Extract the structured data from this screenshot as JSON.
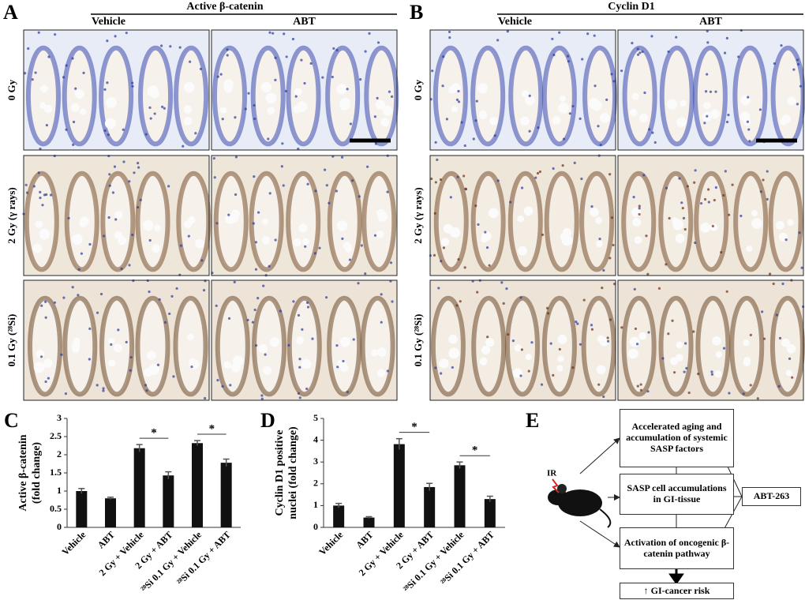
{
  "panels": [
    {
      "letter": "A",
      "title": "Active β-catenin",
      "columns": [
        "Vehicle",
        "ABT"
      ],
      "rows": [
        "0 Gy",
        "2 Gy (γ rays)",
        "0.1 Gy (²⁸Si)"
      ]
    },
    {
      "letter": "B",
      "title": "Cyclin D1",
      "columns": [
        "Vehicle",
        "ABT"
      ],
      "rows": [
        "0 Gy",
        "2 Gy (γ rays)",
        "0.1 Gy (²⁸Si)"
      ]
    }
  ],
  "chart_data": [
    {
      "type": "bar",
      "panel": "C",
      "ylabel": [
        "Active β-catenin",
        "(fold change)"
      ],
      "categories": [
        "Vehicle",
        "ABT",
        "2 Gy + Vehicle",
        "2 Gy + ABT",
        "²⁸Si 0.1 Gy + Vehicle",
        "²⁸Si 0.1 Gy + ABT"
      ],
      "values": [
        1.0,
        0.8,
        2.18,
        1.43,
        2.32,
        1.78
      ],
      "errors": [
        0.07,
        0.03,
        0.1,
        0.1,
        0.07,
        0.1
      ],
      "color": "#111111",
      "ylim": [
        0,
        3
      ],
      "yticks": [
        0,
        0.5,
        1,
        1.5,
        2,
        2.5,
        3
      ],
      "annotations": [
        "*",
        "*"
      ]
    },
    {
      "type": "bar",
      "panel": "D",
      "ylabel": [
        "Cyclin D1 positive",
        "nuclei (fold change)"
      ],
      "categories": [
        "Vehicle",
        "ABT",
        "2 Gy + Vehicle",
        "2 Gy + ABT",
        "²⁸Si 0.1 Gy + Vehicle",
        "²⁸Si 0.1 Gy + ABT"
      ],
      "values": [
        1.0,
        0.45,
        3.82,
        1.85,
        2.85,
        1.3
      ],
      "errors": [
        0.1,
        0.04,
        0.25,
        0.17,
        0.15,
        0.13
      ],
      "color": "#111111",
      "ylim": [
        0,
        5
      ],
      "yticks": [
        0,
        1,
        2,
        3,
        4,
        5
      ],
      "annotations": [
        "*",
        "*"
      ]
    }
  ],
  "diagram": {
    "panel": "E",
    "source": "IR",
    "nodes": [
      "Accelerated aging and accumulation of systemic SASP factors",
      "SASP cell accumulations in GI-tissue",
      "Activation of oncogenic β-catenin pathway",
      "↑ GI-cancer risk"
    ],
    "inhibitor": "ABT-263"
  }
}
